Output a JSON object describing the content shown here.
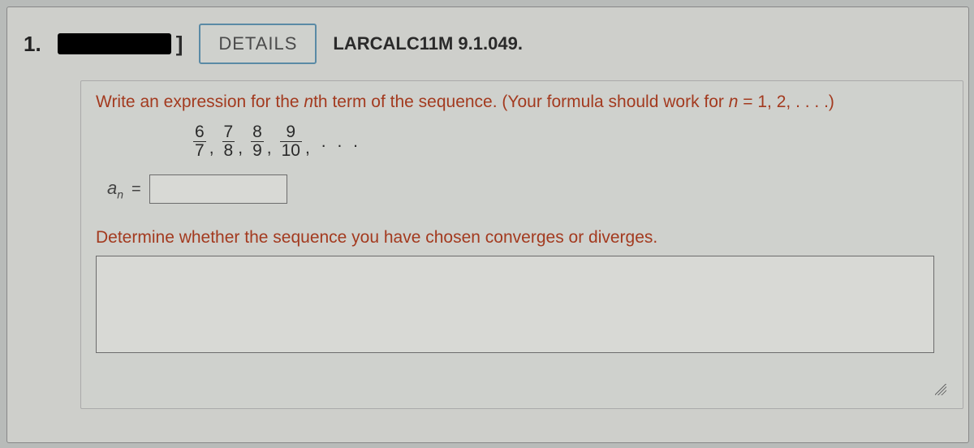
{
  "header": {
    "questionNumber": "1.",
    "detailsLabel": "DETAILS",
    "reference": "LARCALC11M 9.1.049."
  },
  "prompt": {
    "prefix": "Write an expression for the ",
    "nth": "n",
    "mid": "th term of the sequence. (Your formula should work for ",
    "nVar": "n",
    "suffix": " = 1, 2, . . . .)"
  },
  "sequence": {
    "terms": [
      {
        "num": "6",
        "den": "7"
      },
      {
        "num": "7",
        "den": "8"
      },
      {
        "num": "8",
        "den": "9"
      },
      {
        "num": "9",
        "den": "10"
      }
    ],
    "ellipsis": ". . ."
  },
  "answer": {
    "symbolBase": "a",
    "symbolSub": "n",
    "equals": "=",
    "value": ""
  },
  "subPrompt": "Determine whether the sequence you have chosen converges or diverges.",
  "longAnswer": ""
}
